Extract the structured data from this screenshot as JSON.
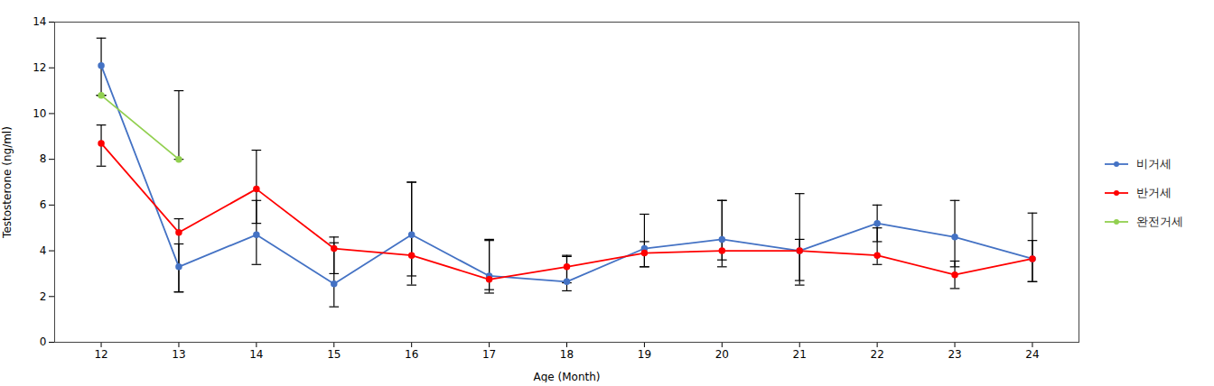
{
  "chart_data": {
    "type": "line",
    "x": [
      12,
      13,
      14,
      15,
      16,
      17,
      18,
      19,
      20,
      21,
      22,
      23,
      24
    ],
    "series": [
      {
        "name": "비거세",
        "color": "#4472C4",
        "values": [
          12.1,
          3.3,
          4.7,
          2.55,
          4.7,
          2.9,
          2.65,
          4.1,
          4.5,
          4.0,
          5.2,
          4.6,
          3.65
        ],
        "yerr_upper": [
          1.2,
          1.0,
          1.5,
          1.8,
          2.3,
          1.6,
          1.1,
          1.5,
          1.7,
          2.5,
          0.8,
          1.6,
          2.0
        ],
        "yerr_lower": [
          1.3,
          1.1,
          1.3,
          1.0,
          2.2,
          0.6,
          0.4,
          0.8,
          0.9,
          1.3,
          0.8,
          1.3,
          1.0
        ]
      },
      {
        "name": "반거세",
        "color": "#FF0000",
        "values": [
          8.7,
          4.8,
          6.7,
          4.1,
          3.8,
          2.75,
          3.3,
          3.9,
          4.0,
          4.0,
          3.8,
          2.95,
          3.65
        ],
        "yerr_upper": [
          0.8,
          0.6,
          1.7,
          0.5,
          3.2,
          1.7,
          0.5,
          0.5,
          2.2,
          0.5,
          1.2,
          0.6,
          0.8
        ],
        "yerr_lower": [
          1.0,
          2.6,
          1.5,
          1.1,
          0.9,
          0.6,
          0.7,
          0.6,
          0.7,
          1.5,
          0.4,
          0.6,
          1.0
        ]
      },
      {
        "name": "완전거세",
        "color": "#92D050",
        "values": [
          10.8,
          8.0,
          null,
          null,
          null,
          null,
          null,
          null,
          null,
          null,
          null,
          null,
          null
        ],
        "yerr_upper": [
          0.0,
          3.0,
          null,
          null,
          null,
          null,
          null,
          null,
          null,
          null,
          null,
          null,
          null
        ],
        "yerr_lower": [
          0.0,
          0.0,
          null,
          null,
          null,
          null,
          null,
          null,
          null,
          null,
          null,
          null,
          null
        ]
      }
    ],
    "xlabel": "Age (Month)",
    "ylabel": "Testosterone (ng/ml)",
    "xlim": [
      11.4,
      24.6
    ],
    "xticks": [
      12,
      13,
      14,
      15,
      16,
      17,
      18,
      19,
      20,
      21,
      22,
      23,
      24
    ],
    "ylim": [
      0,
      14
    ],
    "yticks": [
      0,
      2,
      4,
      6,
      8,
      10,
      12,
      14
    ],
    "marker": "circle",
    "grid": false,
    "legend": "right"
  }
}
